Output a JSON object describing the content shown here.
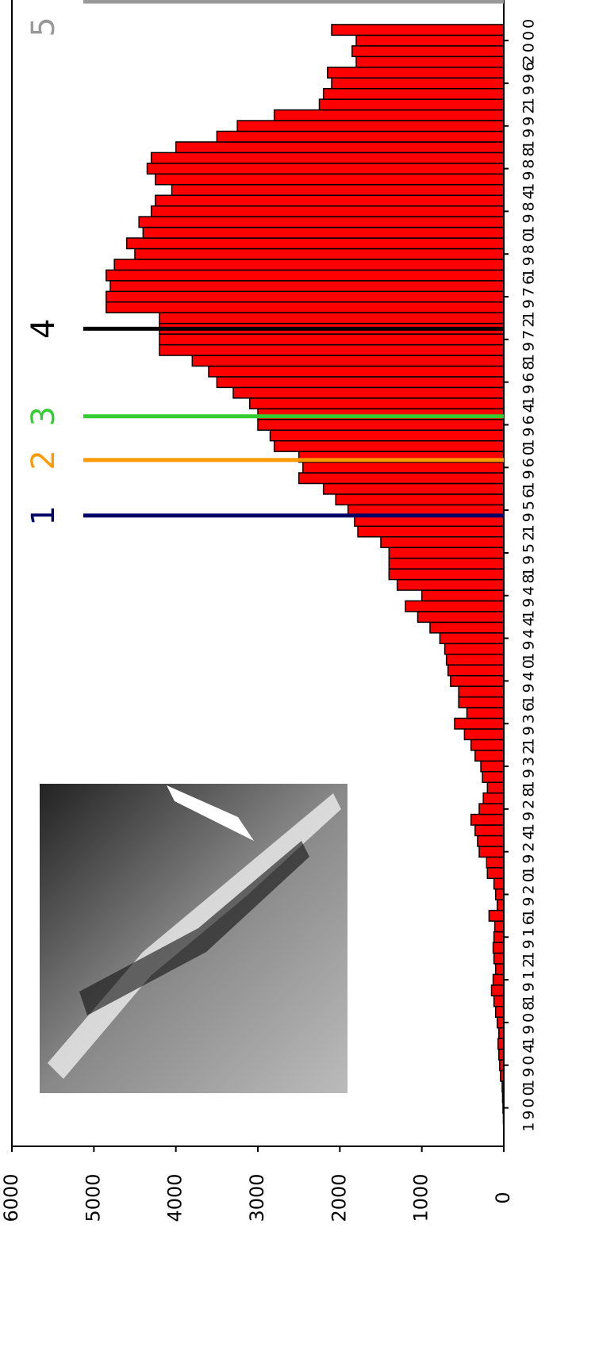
{
  "chart_data": {
    "type": "bar",
    "x": [
      1899,
      1900,
      1901,
      1902,
      1903,
      1904,
      1905,
      1906,
      1907,
      1908,
      1909,
      1910,
      1911,
      1912,
      1913,
      1914,
      1915,
      1916,
      1917,
      1918,
      1919,
      1920,
      1921,
      1922,
      1923,
      1924,
      1925,
      1926,
      1927,
      1928,
      1929,
      1930,
      1931,
      1932,
      1933,
      1934,
      1935,
      1936,
      1937,
      1938,
      1939,
      1940,
      1941,
      1942,
      1943,
      1944,
      1945,
      1946,
      1947,
      1948,
      1949,
      1950,
      1951,
      1952,
      1953,
      1954,
      1955,
      1956,
      1957,
      1958,
      1959,
      1960,
      1961,
      1962,
      1963,
      1964,
      1965,
      1966,
      1967,
      1968,
      1969,
      1970,
      1971,
      1972,
      1973,
      1974,
      1975,
      1976,
      1977,
      1978,
      1979,
      1980,
      1981,
      1982,
      1983,
      1984,
      1985,
      1986,
      1987,
      1988,
      1989,
      1990,
      1991,
      1992,
      1993,
      1994,
      1995,
      1996,
      1997,
      1998,
      1999,
      2000,
      2001
    ],
    "values": [
      5,
      10,
      15,
      20,
      40,
      50,
      60,
      70,
      60,
      80,
      100,
      120,
      150,
      130,
      100,
      120,
      130,
      120,
      110,
      180,
      80,
      100,
      120,
      200,
      210,
      300,
      320,
      350,
      400,
      300,
      250,
      200,
      260,
      280,
      350,
      400,
      480,
      600,
      450,
      550,
      550,
      650,
      680,
      700,
      720,
      780,
      900,
      1050,
      1200,
      1000,
      1300,
      1400,
      1400,
      1400,
      1500,
      1780,
      1820,
      1900,
      2050,
      2200,
      2500,
      2450,
      2500,
      2800,
      2850,
      3000,
      3000,
      3100,
      3300,
      3500,
      3600,
      3800,
      4200,
      4200,
      4200,
      4200,
      4850,
      4850,
      4800,
      4850,
      4750,
      4500,
      4600,
      4400,
      4450,
      4300,
      4250,
      4050,
      4250,
      4350,
      4300,
      4000,
      3500,
      3250,
      2800,
      2250,
      2200,
      2100,
      2150,
      1800,
      1850,
      1800,
      2100
    ],
    "color": "#ff0000",
    "xlim": [
      1896.4,
      2003.8
    ],
    "xticks": [
      1900,
      1904,
      1908,
      1912,
      1916,
      1920,
      1924,
      1928,
      1932,
      1936,
      1940,
      1944,
      1948,
      1952,
      1956,
      1960,
      1964,
      1968,
      1972,
      1976,
      1980,
      1984,
      1988,
      1992,
      1996,
      2000
    ],
    "ylim": [
      0,
      6000
    ],
    "yticks": [
      0,
      1000,
      2000,
      3000,
      4000,
      5000,
      6000
    ],
    "markers": [
      {
        "label": "1",
        "x": 1955.5,
        "color": "#000066"
      },
      {
        "label": "2",
        "x": 1960.7,
        "color": "#ff9900"
      },
      {
        "label": "3",
        "x": 1964.8,
        "color": "#33cc33"
      },
      {
        "label": "4",
        "x": 1973.0,
        "color": "#000000"
      },
      {
        "label": "5",
        "x": 2003.8,
        "color": "#999999"
      }
    ]
  }
}
